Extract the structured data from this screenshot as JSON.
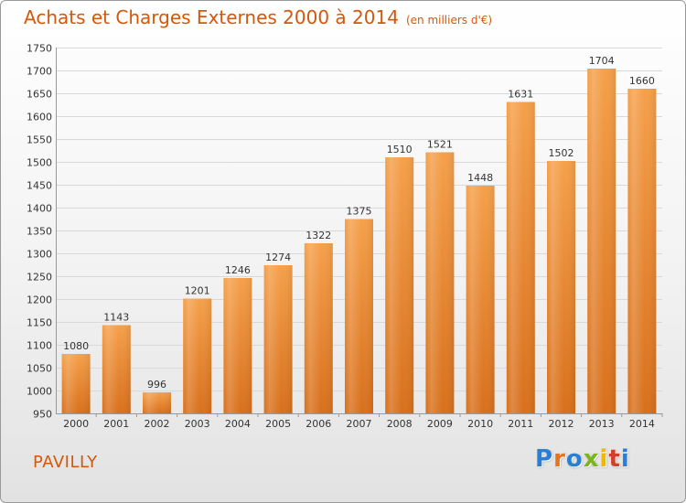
{
  "header": {
    "title": "Achats et Charges Externes 2000 à 2014",
    "unit": "(en milliers d'€)"
  },
  "footer": {
    "place": "PAVILLY",
    "brand": "Proxiti",
    "brand_letters": [
      {
        "ch": "P",
        "color": "#2a7fd4"
      },
      {
        "ch": "r",
        "color": "#e8731e"
      },
      {
        "ch": "o",
        "color": "#2a7fd4"
      },
      {
        "ch": "x",
        "color": "#7ab51d"
      },
      {
        "ch": "i",
        "color": "#f2b705"
      },
      {
        "ch": "t",
        "color": "#d43d2a"
      },
      {
        "ch": "i",
        "color": "#2a7fd4"
      }
    ]
  },
  "colors": {
    "accent": "#d4570a",
    "bar_top": "#f5a04a",
    "bar_bottom": "#d8701c",
    "grid": "#d9d9d9"
  },
  "chart_data": {
    "type": "bar",
    "categories": [
      "2000",
      "2001",
      "2002",
      "2003",
      "2004",
      "2005",
      "2006",
      "2007",
      "2008",
      "2009",
      "2010",
      "2011",
      "2012",
      "2013",
      "2014"
    ],
    "values": [
      1080,
      1143,
      996,
      1201,
      1246,
      1274,
      1322,
      1375,
      1510,
      1521,
      1448,
      1631,
      1502,
      1704,
      1660
    ],
    "title": "Achats et Charges Externes 2000 à 2014",
    "xlabel": "",
    "ylabel": "",
    "ylim": [
      950,
      1750
    ],
    "yticks": [
      950,
      1000,
      1050,
      1100,
      1150,
      1200,
      1250,
      1300,
      1350,
      1400,
      1450,
      1500,
      1550,
      1600,
      1650,
      1700,
      1750
    ],
    "grid": true,
    "legend": "none"
  }
}
